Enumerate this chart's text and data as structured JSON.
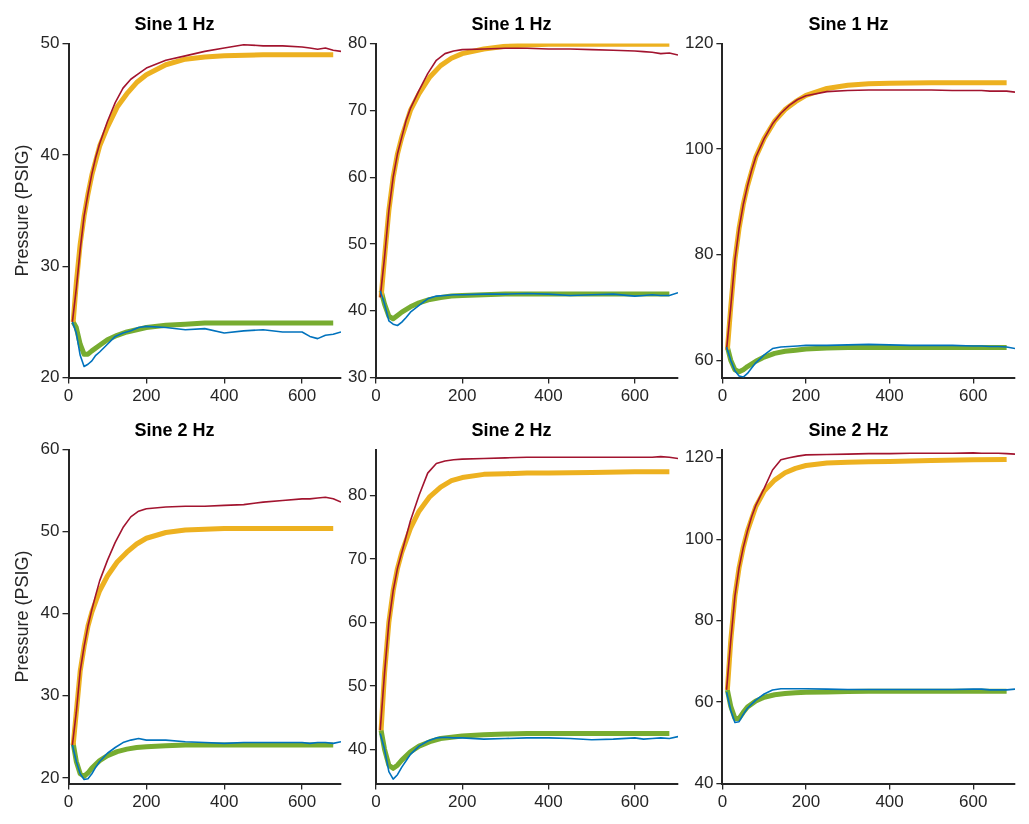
{
  "chart_data": [
    {
      "type": "line",
      "title": "Sine 1 Hz",
      "ylabel": "Pressure (PSIG)",
      "xlim": [
        0,
        700
      ],
      "xticks": [
        0,
        200,
        400,
        600
      ],
      "ylim": [
        20,
        50
      ],
      "yticks": [
        20,
        30,
        40,
        50
      ],
      "series": [
        {
          "color": "#0072bd",
          "x": [
            10,
            20,
            30,
            40,
            50,
            60,
            70,
            80,
            100,
            120,
            140,
            160,
            180,
            200,
            250,
            300,
            350,
            400,
            450,
            500,
            550,
            600,
            620,
            640,
            660,
            680,
            700
          ],
          "values": [
            25,
            24,
            22,
            21,
            21.2,
            21.5,
            22,
            22.3,
            23,
            23.7,
            24,
            24.2,
            24.5,
            24.6,
            24.5,
            24.3,
            24.4,
            24,
            24.2,
            24.3,
            24.1,
            24.1,
            23.7,
            23.5,
            23.8,
            23.9,
            24.1
          ]
        },
        {
          "color": "#a2142f",
          "x": [
            10,
            20,
            30,
            40,
            50,
            60,
            70,
            80,
            100,
            120,
            140,
            160,
            180,
            200,
            250,
            300,
            350,
            400,
            450,
            500,
            550,
            600,
            620,
            640,
            660,
            680,
            700
          ],
          "values": [
            25,
            28,
            31.5,
            34.5,
            36.5,
            38.3,
            39.8,
            41,
            43,
            44.7,
            46,
            46.8,
            47.3,
            47.8,
            48.5,
            48.9,
            49.3,
            49.6,
            49.9,
            49.8,
            49.8,
            49.7,
            49.6,
            49.5,
            49.6,
            49.4,
            49.3
          ]
        },
        {
          "color": "#edb120",
          "x": [
            12,
            20,
            30,
            40,
            50,
            60,
            80,
            100,
            125,
            150,
            175,
            200,
            250,
            300,
            350,
            400,
            500,
            600,
            680
          ],
          "values": [
            25,
            28.5,
            32,
            34.5,
            36.5,
            38.2,
            40.8,
            42.5,
            44.3,
            45.5,
            46.5,
            47.2,
            48.1,
            48.6,
            48.8,
            48.9,
            49,
            49,
            49
          ]
        },
        {
          "color": "#77ac30",
          "x": [
            12,
            20,
            30,
            40,
            50,
            60,
            80,
            100,
            125,
            150,
            175,
            200,
            250,
            300,
            350,
            400,
            500,
            600,
            680
          ],
          "values": [
            25,
            24.5,
            23,
            22.1,
            22.1,
            22.4,
            22.9,
            23.4,
            23.8,
            24.1,
            24.3,
            24.5,
            24.7,
            24.8,
            24.9,
            24.9,
            24.9,
            24.9,
            24.9
          ]
        }
      ]
    },
    {
      "type": "line",
      "title": "Sine 1 Hz",
      "xlim": [
        0,
        700
      ],
      "xticks": [
        0,
        200,
        400,
        600
      ],
      "ylim": [
        30,
        80
      ],
      "yticks": [
        30,
        40,
        50,
        60,
        70,
        80
      ],
      "series": [
        {
          "color": "#0072bd",
          "x": [
            10,
            20,
            30,
            40,
            50,
            60,
            70,
            80,
            100,
            120,
            140,
            160,
            180,
            200,
            250,
            300,
            350,
            400,
            450,
            500,
            550,
            600,
            620,
            640,
            660,
            680,
            700
          ],
          "values": [
            43,
            41,
            38.5,
            38,
            37.8,
            38.3,
            39,
            39.8,
            40.8,
            41.8,
            42.2,
            42.3,
            42.4,
            42.4,
            42.5,
            42.5,
            42.6,
            42.5,
            42.3,
            42.4,
            42.5,
            42.2,
            42.3,
            42.4,
            42.3,
            42.3,
            42.7
          ]
        },
        {
          "color": "#a2142f",
          "x": [
            10,
            20,
            30,
            40,
            50,
            60,
            70,
            80,
            100,
            120,
            140,
            160,
            180,
            200,
            250,
            300,
            350,
            400,
            450,
            500,
            550,
            600,
            620,
            640,
            660,
            680,
            700
          ],
          "values": [
            42,
            48,
            55,
            60,
            63.5,
            66,
            68.5,
            70.3,
            73,
            75.5,
            77.5,
            78.5,
            78.9,
            79.1,
            79.2,
            79.3,
            79.3,
            79.2,
            79.2,
            79.1,
            79,
            78.9,
            78.8,
            78.7,
            78.5,
            78.6,
            78.3
          ]
        },
        {
          "color": "#edb120",
          "x": [
            12,
            20,
            30,
            40,
            50,
            60,
            80,
            100,
            125,
            150,
            175,
            200,
            250,
            300,
            350,
            400,
            500,
            600,
            680
          ],
          "values": [
            42,
            48,
            55,
            60,
            63.5,
            66,
            70,
            72.5,
            75,
            76.7,
            77.8,
            78.5,
            79.2,
            79.6,
            79.8,
            79.9,
            79.9,
            79.9,
            79.9
          ]
        },
        {
          "color": "#77ac30",
          "x": [
            12,
            20,
            30,
            40,
            50,
            60,
            80,
            100,
            125,
            150,
            175,
            200,
            250,
            300,
            350,
            400,
            500,
            600,
            680
          ],
          "values": [
            43,
            41,
            39.2,
            38.8,
            39.3,
            39.8,
            40.6,
            41.2,
            41.7,
            42,
            42.2,
            42.3,
            42.4,
            42.5,
            42.5,
            42.5,
            42.5,
            42.5,
            42.5
          ]
        }
      ]
    },
    {
      "type": "line",
      "title": "Sine 1 Hz",
      "xlim": [
        0,
        700
      ],
      "xticks": [
        0,
        200,
        400,
        600
      ],
      "ylim": [
        56.7,
        120
      ],
      "yticks": [
        60,
        80,
        100,
        120
      ],
      "series": [
        {
          "color": "#0072bd",
          "x": [
            10,
            20,
            30,
            40,
            50,
            60,
            70,
            80,
            100,
            120,
            140,
            160,
            180,
            200,
            250,
            300,
            350,
            400,
            450,
            500,
            550,
            600,
            620,
            640,
            660,
            680,
            700
          ],
          "values": [
            62.5,
            60,
            58,
            57,
            56.8,
            57.5,
            58.5,
            59.5,
            61,
            62.2,
            62.5,
            62.6,
            62.7,
            62.8,
            62.8,
            62.9,
            63,
            62.9,
            62.8,
            62.8,
            62.8,
            62.7,
            62.7,
            62.6,
            62.6,
            62.5,
            62.2
          ]
        },
        {
          "color": "#a2142f",
          "x": [
            10,
            20,
            30,
            40,
            50,
            60,
            70,
            80,
            100,
            120,
            140,
            160,
            180,
            200,
            250,
            300,
            350,
            400,
            450,
            500,
            550,
            600,
            620,
            640,
            660,
            680,
            700
          ],
          "values": [
            62,
            70,
            79,
            85,
            89.5,
            93,
            96,
            98.5,
            102,
            104.8,
            106.8,
            108.3,
            109.4,
            110.1,
            110.9,
            111.1,
            111.2,
            111.2,
            111.2,
            111.2,
            111.1,
            111.1,
            111.1,
            111,
            111,
            111,
            110.8
          ]
        },
        {
          "color": "#edb120",
          "x": [
            12,
            20,
            30,
            40,
            50,
            60,
            80,
            100,
            125,
            150,
            175,
            200,
            250,
            300,
            350,
            400,
            500,
            600,
            680
          ],
          "values": [
            62,
            70,
            79,
            85,
            89.5,
            93,
            98.5,
            102,
            105.3,
            107.5,
            109,
            110.2,
            111.5,
            112.1,
            112.4,
            112.5,
            112.6,
            112.6,
            112.6
          ]
        },
        {
          "color": "#77ac30",
          "x": [
            12,
            20,
            30,
            40,
            50,
            60,
            80,
            100,
            125,
            150,
            175,
            200,
            250,
            300,
            350,
            400,
            500,
            600,
            680
          ],
          "values": [
            62.5,
            60,
            58.2,
            57.8,
            58.2,
            58.8,
            59.8,
            60.6,
            61.3,
            61.7,
            61.9,
            62.1,
            62.3,
            62.4,
            62.4,
            62.4,
            62.4,
            62.4,
            62.4
          ]
        }
      ]
    },
    {
      "type": "line",
      "title": "Sine 2 Hz",
      "ylabel": "Pressure (PSIG)",
      "xlim": [
        0,
        700
      ],
      "xticks": [
        0,
        200,
        400,
        600
      ],
      "ylim": [
        19.3,
        60
      ],
      "yticks": [
        20,
        30,
        40,
        50,
        60
      ],
      "series": [
        {
          "color": "#0072bd",
          "x": [
            10,
            20,
            30,
            40,
            50,
            60,
            70,
            80,
            100,
            120,
            140,
            160,
            180,
            200,
            250,
            300,
            350,
            400,
            450,
            500,
            550,
            600,
            620,
            640,
            660,
            680,
            700
          ],
          "values": [
            24,
            22,
            20.5,
            19.8,
            19.9,
            20.5,
            21.3,
            22,
            23,
            23.7,
            24.3,
            24.6,
            24.8,
            24.6,
            24.6,
            24.4,
            24.3,
            24.2,
            24.3,
            24.3,
            24.3,
            24.3,
            24.2,
            24.3,
            24.3,
            24.2,
            24.4
          ]
        },
        {
          "color": "#a2142f",
          "x": [
            10,
            20,
            30,
            40,
            50,
            60,
            70,
            80,
            100,
            120,
            140,
            160,
            180,
            200,
            250,
            300,
            350,
            400,
            450,
            500,
            550,
            600,
            620,
            640,
            660,
            680,
            700
          ],
          "values": [
            24,
            28,
            33,
            36,
            38.5,
            40.5,
            42.3,
            44,
            46.5,
            48.7,
            50.5,
            51.8,
            52.5,
            52.8,
            53,
            53.1,
            53.1,
            53.2,
            53.3,
            53.6,
            53.8,
            54,
            54,
            54.1,
            54.2,
            54,
            53.6
          ]
        },
        {
          "color": "#edb120",
          "x": [
            12,
            20,
            30,
            40,
            50,
            60,
            80,
            100,
            125,
            150,
            175,
            200,
            250,
            300,
            350,
            400,
            500,
            600,
            680
          ],
          "values": [
            24,
            28,
            33,
            36,
            38.5,
            40.2,
            42.8,
            44.6,
            46.3,
            47.5,
            48.5,
            49.2,
            49.9,
            50.2,
            50.3,
            50.4,
            50.4,
            50.4,
            50.4
          ]
        },
        {
          "color": "#77ac30",
          "x": [
            12,
            20,
            30,
            40,
            50,
            60,
            80,
            100,
            125,
            150,
            175,
            200,
            250,
            300,
            350,
            400,
            500,
            600,
            680
          ],
          "values": [
            24.2,
            22,
            20.5,
            20.2,
            20.6,
            21.2,
            22.1,
            22.7,
            23.2,
            23.5,
            23.7,
            23.8,
            23.9,
            24,
            24,
            24,
            24,
            24,
            24
          ]
        }
      ]
    },
    {
      "type": "line",
      "title": "Sine 2 Hz",
      "xlim": [
        0,
        700
      ],
      "xticks": [
        0,
        200,
        400,
        600
      ],
      "ylim": [
        34.6,
        87.2
      ],
      "yticks": [
        40,
        50,
        60,
        70,
        80
      ],
      "series": [
        {
          "color": "#0072bd",
          "x": [
            10,
            20,
            30,
            40,
            50,
            60,
            70,
            80,
            100,
            120,
            140,
            160,
            180,
            200,
            250,
            300,
            350,
            400,
            450,
            500,
            550,
            600,
            620,
            640,
            660,
            680,
            700
          ],
          "values": [
            42.5,
            40,
            36.5,
            35.3,
            36,
            37.2,
            38.2,
            39.2,
            40.5,
            41.3,
            41.8,
            41.9,
            41.8,
            41.8,
            41.6,
            41.7,
            41.8,
            41.8,
            41.7,
            41.5,
            41.6,
            41.8,
            41.6,
            41.7,
            41.8,
            41.7,
            42
          ]
        },
        {
          "color": "#a2142f",
          "x": [
            10,
            20,
            30,
            40,
            50,
            60,
            70,
            80,
            100,
            120,
            140,
            160,
            180,
            200,
            250,
            300,
            350,
            400,
            450,
            500,
            550,
            600,
            620,
            640,
            660,
            680,
            700
          ],
          "values": [
            43,
            52,
            60,
            65,
            68.5,
            71,
            73.5,
            76,
            80,
            83.5,
            85,
            85.4,
            85.6,
            85.7,
            85.8,
            85.9,
            86,
            86,
            86,
            86,
            86,
            86,
            86,
            86,
            86.1,
            86,
            85.8
          ]
        },
        {
          "color": "#edb120",
          "x": [
            12,
            20,
            30,
            40,
            50,
            60,
            80,
            100,
            125,
            150,
            175,
            200,
            250,
            300,
            350,
            400,
            500,
            600,
            680
          ],
          "values": [
            43,
            52,
            60,
            65,
            68.5,
            71,
            74.8,
            77.5,
            79.8,
            81.3,
            82.3,
            82.8,
            83.3,
            83.4,
            83.5,
            83.5,
            83.6,
            83.7,
            83.7
          ]
        },
        {
          "color": "#77ac30",
          "x": [
            12,
            20,
            30,
            40,
            50,
            60,
            80,
            100,
            125,
            150,
            175,
            200,
            250,
            300,
            350,
            400,
            500,
            600,
            680
          ],
          "values": [
            43,
            40,
            37.5,
            37,
            37.5,
            38.3,
            39.6,
            40.5,
            41.2,
            41.7,
            41.9,
            42.1,
            42.3,
            42.4,
            42.5,
            42.5,
            42.5,
            42.5,
            42.5
          ]
        }
      ]
    },
    {
      "type": "line",
      "title": "Sine 2 Hz",
      "xlim": [
        0,
        700
      ],
      "xticks": [
        0,
        200,
        400,
        600
      ],
      "ylim": [
        40,
        122
      ],
      "yticks": [
        40,
        60,
        80,
        100,
        120
      ],
      "series": [
        {
          "color": "#0072bd",
          "x": [
            10,
            20,
            30,
            40,
            50,
            60,
            70,
            80,
            100,
            120,
            140,
            160,
            180,
            200,
            250,
            300,
            350,
            400,
            450,
            500,
            550,
            600,
            620,
            640,
            660,
            680,
            700
          ],
          "values": [
            62.5,
            58,
            55,
            55.2,
            57,
            58.5,
            59.5,
            60.5,
            62,
            63,
            63.3,
            63.3,
            63.3,
            63.3,
            63.2,
            63.1,
            63.1,
            63.1,
            63.1,
            63.1,
            63.1,
            63.2,
            63.2,
            63,
            63,
            63,
            63.2
          ]
        },
        {
          "color": "#a2142f",
          "x": [
            10,
            20,
            30,
            40,
            50,
            60,
            70,
            80,
            100,
            120,
            140,
            160,
            180,
            200,
            250,
            300,
            350,
            400,
            450,
            500,
            550,
            600,
            620,
            640,
            660,
            680,
            700
          ],
          "values": [
            63,
            75,
            86,
            93,
            98,
            102,
            105.5,
            108.3,
            112.5,
            117,
            119.5,
            120,
            120.4,
            120.7,
            120.8,
            120.9,
            121,
            121,
            121.1,
            121.1,
            121.1,
            121.2,
            121.1,
            121.1,
            121.1,
            121,
            120.9
          ]
        },
        {
          "color": "#edb120",
          "x": [
            12,
            20,
            30,
            40,
            50,
            60,
            80,
            100,
            125,
            150,
            175,
            200,
            250,
            300,
            350,
            400,
            500,
            600,
            680
          ],
          "values": [
            63,
            75,
            86,
            93,
            98,
            102,
            108,
            111.8,
            114.5,
            116.3,
            117.4,
            118.1,
            118.7,
            118.9,
            119,
            119.1,
            119.3,
            119.5,
            119.6
          ]
        },
        {
          "color": "#77ac30",
          "x": [
            12,
            20,
            30,
            40,
            50,
            60,
            80,
            100,
            125,
            150,
            175,
            200,
            250,
            300,
            350,
            400,
            500,
            600,
            680
          ],
          "values": [
            63,
            59,
            56,
            56,
            57.5,
            58.8,
            60.3,
            61.2,
            61.8,
            62.1,
            62.3,
            62.4,
            62.5,
            62.6,
            62.7,
            62.7,
            62.7,
            62.7,
            62.7
          ]
        }
      ]
    }
  ]
}
